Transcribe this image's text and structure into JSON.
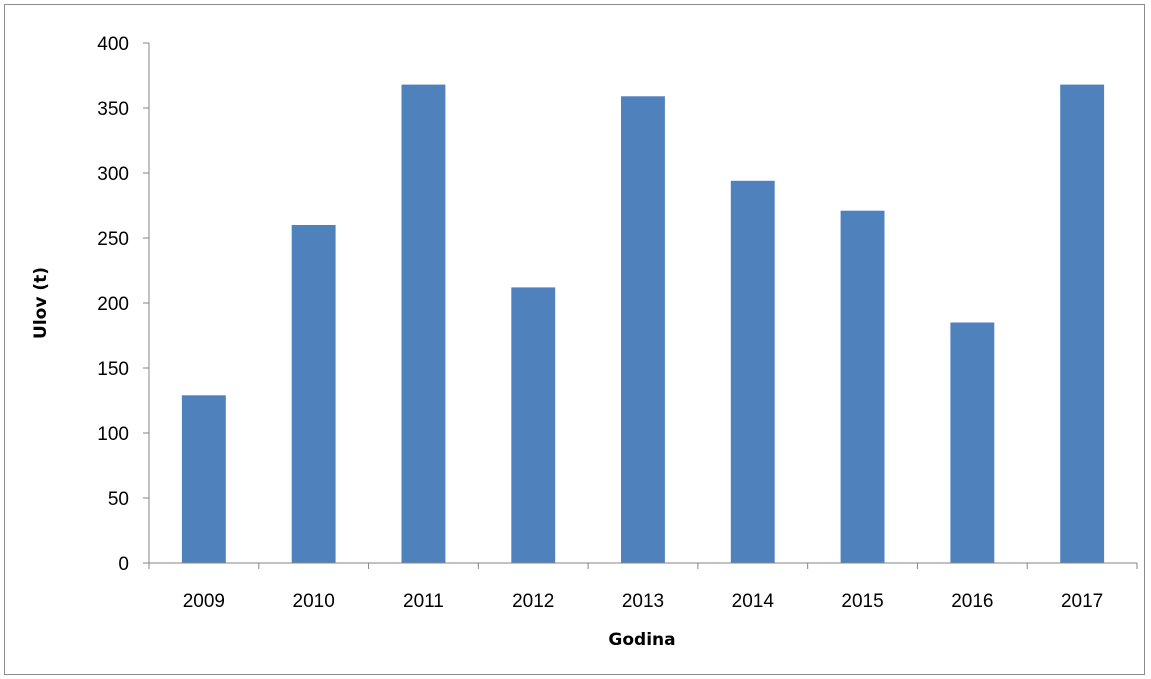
{
  "chart_data": {
    "type": "bar",
    "title": "",
    "xlabel": "Godina",
    "ylabel": "Ulov (t)",
    "categories": [
      "2009",
      "2010",
      "2011",
      "2012",
      "2013",
      "2014",
      "2015",
      "2016",
      "2017"
    ],
    "values": [
      129,
      260,
      368,
      212,
      359,
      294,
      271,
      185,
      368
    ],
    "ylim": [
      0,
      400
    ],
    "yticks": [
      0,
      50,
      100,
      150,
      200,
      250,
      300,
      350,
      400
    ],
    "bar_color": "#4f81bd",
    "grid": false,
    "legend": "none"
  }
}
